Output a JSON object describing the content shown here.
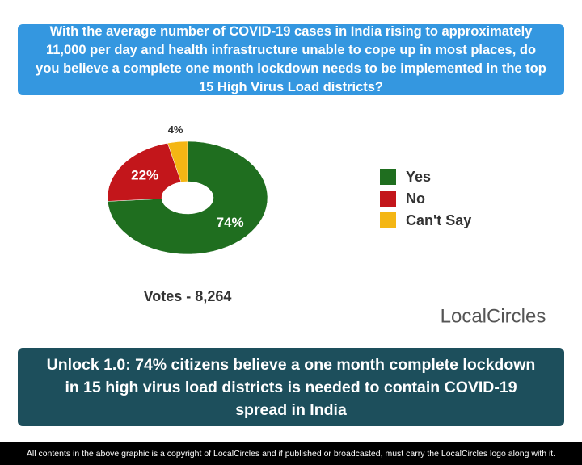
{
  "chart_data": {
    "type": "donut",
    "title": "With the average number of COVID-19 cases in India rising to approximately 11,000 per day and health infrastructure unable to cope up in most places, do you believe a complete one month lockdown needs to be implemented in the top 15 High Virus Load districts?",
    "categories": [
      "Yes",
      "No",
      "Can't Say"
    ],
    "values": [
      74,
      22,
      4
    ],
    "value_labels": [
      "74%",
      "22%",
      "4%"
    ],
    "colors": [
      "#1f6e1f",
      "#c3161b",
      "#f4b614"
    ],
    "annotation": "Votes - 8,264",
    "legend": "right"
  },
  "logo": "LocalCircles",
  "headline": "Unlock 1.0: 74% citizens believe a one month complete lockdown in 15 high virus load districts is needed to contain COVID-19 spread in India",
  "footer": "All contents in the above graphic is a copyright of LocalCircles and if published or broadcasted, must carry the LocalCircles logo along with it."
}
